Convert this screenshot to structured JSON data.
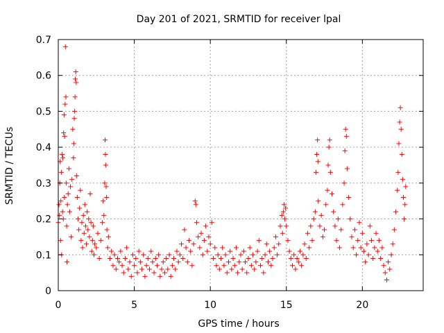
{
  "chart_data": {
    "type": "scatter",
    "title": "Day 201 of 2021, SRMTID for receiver lpal",
    "xlabel": "GPS time / hours",
    "ylabel": "SRMTID / TECUs",
    "xlim": [
      0,
      24
    ],
    "ylim": [
      0,
      0.7
    ],
    "xticks": [
      0,
      5,
      10,
      15,
      20
    ],
    "xtick_labels": [
      "0",
      "5",
      "10",
      "15",
      "20"
    ],
    "yticks": [
      0,
      0.1,
      0.2,
      0.3,
      0.4,
      0.5,
      0.6,
      0.7
    ],
    "ytick_labels": [
      "0",
      "0.1",
      "0.2",
      "0.3",
      "0.4",
      "0.5",
      "0.6",
      "0.7"
    ],
    "grid": true,
    "marker": "+",
    "color": "#ff0000",
    "series": [
      {
        "name": "SRMTID",
        "points": [
          [
            0.0,
            0.19
          ],
          [
            0.05,
            0.24
          ],
          [
            0.08,
            0.21
          ],
          [
            0.1,
            0.3
          ],
          [
            0.12,
            0.36
          ],
          [
            0.15,
            0.14
          ],
          [
            0.17,
            0.25
          ],
          [
            0.2,
            0.33
          ],
          [
            0.22,
            0.1
          ],
          [
            0.25,
            0.38
          ],
          [
            0.28,
            0.22
          ],
          [
            0.3,
            0.37
          ],
          [
            0.33,
            0.2
          ],
          [
            0.35,
            0.44
          ],
          [
            0.38,
            0.49
          ],
          [
            0.4,
            0.26
          ],
          [
            0.42,
            0.43
          ],
          [
            0.45,
            0.52
          ],
          [
            0.47,
            0.68
          ],
          [
            0.5,
            0.54
          ],
          [
            0.52,
            0.3
          ],
          [
            0.55,
            0.18
          ],
          [
            0.57,
            0.08
          ],
          [
            0.6,
            0.24
          ],
          [
            0.65,
            0.27
          ],
          [
            0.7,
            0.34
          ],
          [
            0.75,
            0.22
          ],
          [
            0.8,
            0.29
          ],
          [
            0.85,
            0.15
          ],
          [
            0.9,
            0.31
          ],
          [
            0.95,
            0.45
          ],
          [
            1.0,
            0.37
          ],
          [
            1.02,
            0.41
          ],
          [
            1.05,
            0.48
          ],
          [
            1.08,
            0.5
          ],
          [
            1.1,
            0.54
          ],
          [
            1.12,
            0.59
          ],
          [
            1.15,
            0.61
          ],
          [
            1.18,
            0.58
          ],
          [
            1.2,
            0.32
          ],
          [
            1.25,
            0.26
          ],
          [
            1.3,
            0.2
          ],
          [
            1.35,
            0.17
          ],
          [
            1.4,
            0.23
          ],
          [
            1.45,
            0.28
          ],
          [
            1.5,
            0.14
          ],
          [
            1.55,
            0.19
          ],
          [
            1.6,
            0.12
          ],
          [
            1.65,
            0.21
          ],
          [
            1.7,
            0.16
          ],
          [
            1.75,
            0.24
          ],
          [
            1.8,
            0.18
          ],
          [
            1.85,
            0.13
          ],
          [
            1.9,
            0.22
          ],
          [
            1.95,
            0.17
          ],
          [
            2.0,
            0.2
          ],
          [
            2.05,
            0.15
          ],
          [
            2.1,
            0.27
          ],
          [
            2.15,
            0.19
          ],
          [
            2.2,
            0.11
          ],
          [
            2.25,
            0.14
          ],
          [
            2.3,
            0.18
          ],
          [
            2.35,
            0.1
          ],
          [
            2.4,
            0.13
          ],
          [
            2.5,
            0.12
          ],
          [
            2.6,
            0.16
          ],
          [
            2.7,
            0.09
          ],
          [
            2.8,
            0.14
          ],
          [
            2.9,
            0.19
          ],
          [
            2.95,
            0.25
          ],
          [
            3.0,
            0.21
          ],
          [
            3.05,
            0.3
          ],
          [
            3.08,
            0.42
          ],
          [
            3.1,
            0.38
          ],
          [
            3.12,
            0.35
          ],
          [
            3.15,
            0.29
          ],
          [
            3.18,
            0.26
          ],
          [
            3.2,
            0.17
          ],
          [
            3.25,
            0.12
          ],
          [
            3.3,
            0.15
          ],
          [
            3.4,
            0.09
          ],
          [
            3.5,
            0.11
          ],
          [
            3.6,
            0.07
          ],
          [
            3.7,
            0.1
          ],
          [
            3.8,
            0.06
          ],
          [
            3.9,
            0.09
          ],
          [
            4.0,
            0.08
          ],
          [
            4.1,
            0.11
          ],
          [
            4.2,
            0.07
          ],
          [
            4.3,
            0.05
          ],
          [
            4.4,
            0.09
          ],
          [
            4.5,
            0.12
          ],
          [
            4.6,
            0.06
          ],
          [
            4.7,
            0.08
          ],
          [
            4.8,
            0.04
          ],
          [
            4.9,
            0.1
          ],
          [
            5.0,
            0.07
          ],
          [
            5.1,
            0.09
          ],
          [
            5.2,
            0.05
          ],
          [
            5.3,
            0.11
          ],
          [
            5.4,
            0.08
          ],
          [
            5.5,
            0.06
          ],
          [
            5.6,
            0.1
          ],
          [
            5.7,
            0.04
          ],
          [
            5.8,
            0.07
          ],
          [
            5.9,
            0.09
          ],
          [
            6.0,
            0.06
          ],
          [
            6.1,
            0.11
          ],
          [
            6.2,
            0.08
          ],
          [
            6.3,
            0.05
          ],
          [
            6.4,
            0.09
          ],
          [
            6.5,
            0.07
          ],
          [
            6.6,
            0.1
          ],
          [
            6.7,
            0.04
          ],
          [
            6.8,
            0.06
          ],
          [
            6.9,
            0.08
          ],
          [
            7.0,
            0.05
          ],
          [
            7.1,
            0.09
          ],
          [
            7.2,
            0.06
          ],
          [
            7.3,
            0.1
          ],
          [
            7.4,
            0.04
          ],
          [
            7.5,
            0.07
          ],
          [
            7.6,
            0.09
          ],
          [
            7.7,
            0.06
          ],
          [
            7.8,
            0.11
          ],
          [
            7.9,
            0.08
          ],
          [
            8.0,
            0.1
          ],
          [
            8.1,
            0.13
          ],
          [
            8.2,
            0.09
          ],
          [
            8.3,
            0.17
          ],
          [
            8.4,
            0.12
          ],
          [
            8.5,
            0.08
          ],
          [
            8.6,
            0.14
          ],
          [
            8.7,
            0.11
          ],
          [
            8.8,
            0.07
          ],
          [
            8.9,
            0.13
          ],
          [
            9.0,
            0.25
          ],
          [
            9.05,
            0.24
          ],
          [
            9.1,
            0.19
          ],
          [
            9.2,
            0.15
          ],
          [
            9.3,
            0.12
          ],
          [
            9.4,
            0.16
          ],
          [
            9.5,
            0.1
          ],
          [
            9.6,
            0.14
          ],
          [
            9.7,
            0.18
          ],
          [
            9.8,
            0.11
          ],
          [
            9.9,
            0.15
          ],
          [
            10.0,
            0.13
          ],
          [
            10.1,
            0.19
          ],
          [
            10.2,
            0.09
          ],
          [
            10.3,
            0.12
          ],
          [
            10.4,
            0.07
          ],
          [
            10.5,
            0.1
          ],
          [
            10.6,
            0.06
          ],
          [
            10.7,
            0.09
          ],
          [
            10.8,
            0.12
          ],
          [
            10.9,
            0.07
          ],
          [
            11.0,
            0.1
          ],
          [
            11.1,
            0.05
          ],
          [
            11.2,
            0.08
          ],
          [
            11.3,
            0.11
          ],
          [
            11.4,
            0.06
          ],
          [
            11.5,
            0.09
          ],
          [
            11.6,
            0.07
          ],
          [
            11.7,
            0.12
          ],
          [
            11.8,
            0.05
          ],
          [
            11.9,
            0.08
          ],
          [
            12.0,
            0.1
          ],
          [
            12.1,
            0.06
          ],
          [
            12.2,
            0.11
          ],
          [
            12.3,
            0.08
          ],
          [
            12.4,
            0.05
          ],
          [
            12.5,
            0.09
          ],
          [
            12.6,
            0.12
          ],
          [
            12.7,
            0.07
          ],
          [
            12.8,
            0.1
          ],
          [
            12.9,
            0.06
          ],
          [
            13.0,
            0.08
          ],
          [
            13.1,
            0.11
          ],
          [
            13.2,
            0.14
          ],
          [
            13.3,
            0.07
          ],
          [
            13.4,
            0.09
          ],
          [
            13.5,
            0.05
          ],
          [
            13.6,
            0.1
          ],
          [
            13.7,
            0.13
          ],
          [
            13.8,
            0.08
          ],
          [
            13.9,
            0.11
          ],
          [
            14.0,
            0.07
          ],
          [
            14.1,
            0.09
          ],
          [
            14.2,
            0.12
          ],
          [
            14.3,
            0.15
          ],
          [
            14.4,
            0.1
          ],
          [
            14.5,
            0.13
          ],
          [
            14.6,
            0.18
          ],
          [
            14.7,
            0.21
          ],
          [
            14.75,
            0.16
          ],
          [
            14.8,
            0.22
          ],
          [
            14.85,
            0.24
          ],
          [
            14.9,
            0.2
          ],
          [
            14.95,
            0.23
          ],
          [
            15.0,
            0.18
          ],
          [
            15.1,
            0.14
          ],
          [
            15.2,
            0.11
          ],
          [
            15.3,
            0.09
          ],
          [
            15.4,
            0.07
          ],
          [
            15.5,
            0.1
          ],
          [
            15.6,
            0.06
          ],
          [
            15.7,
            0.09
          ],
          [
            15.8,
            0.08
          ],
          [
            15.9,
            0.11
          ],
          [
            16.0,
            0.07
          ],
          [
            16.1,
            0.1
          ],
          [
            16.2,
            0.13
          ],
          [
            16.3,
            0.09
          ],
          [
            16.4,
            0.16
          ],
          [
            16.5,
            0.12
          ],
          [
            16.6,
            0.18
          ],
          [
            16.7,
            0.14
          ],
          [
            16.8,
            0.2
          ],
          [
            16.9,
            0.22
          ],
          [
            16.95,
            0.33
          ],
          [
            17.0,
            0.38
          ],
          [
            17.05,
            0.42
          ],
          [
            17.08,
            0.36
          ],
          [
            17.1,
            0.25
          ],
          [
            17.2,
            0.18
          ],
          [
            17.3,
            0.21
          ],
          [
            17.4,
            0.15
          ],
          [
            17.5,
            0.17
          ],
          [
            17.6,
            0.24
          ],
          [
            17.7,
            0.28
          ],
          [
            17.75,
            0.35
          ],
          [
            17.8,
            0.4
          ],
          [
            17.85,
            0.42
          ],
          [
            17.9,
            0.33
          ],
          [
            18.0,
            0.27
          ],
          [
            18.1,
            0.22
          ],
          [
            18.2,
            0.18
          ],
          [
            18.3,
            0.14
          ],
          [
            18.4,
            0.2
          ],
          [
            18.5,
            0.12
          ],
          [
            18.6,
            0.17
          ],
          [
            18.7,
            0.24
          ],
          [
            18.8,
            0.3
          ],
          [
            18.85,
            0.39
          ],
          [
            18.9,
            0.45
          ],
          [
            18.95,
            0.43
          ],
          [
            19.0,
            0.34
          ],
          [
            19.1,
            0.26
          ],
          [
            19.2,
            0.2
          ],
          [
            19.3,
            0.15
          ],
          [
            19.4,
            0.12
          ],
          [
            19.5,
            0.17
          ],
          [
            19.6,
            0.1
          ],
          [
            19.7,
            0.14
          ],
          [
            19.8,
            0.19
          ],
          [
            19.9,
            0.12
          ],
          [
            20.0,
            0.16
          ],
          [
            20.1,
            0.11
          ],
          [
            20.2,
            0.08
          ],
          [
            20.3,
            0.13
          ],
          [
            20.4,
            0.1
          ],
          [
            20.5,
            0.18
          ],
          [
            20.6,
            0.14
          ],
          [
            20.7,
            0.09
          ],
          [
            20.8,
            0.12
          ],
          [
            20.9,
            0.16
          ],
          [
            21.0,
            0.11
          ],
          [
            21.1,
            0.14
          ],
          [
            21.2,
            0.09
          ],
          [
            21.3,
            0.12
          ],
          [
            21.4,
            0.07
          ],
          [
            21.5,
            0.05
          ],
          [
            21.6,
            0.03
          ],
          [
            21.7,
            0.08
          ],
          [
            21.8,
            0.06
          ],
          [
            21.9,
            0.1
          ],
          [
            22.0,
            0.13
          ],
          [
            22.1,
            0.17
          ],
          [
            22.2,
            0.22
          ],
          [
            22.3,
            0.28
          ],
          [
            22.35,
            0.33
          ],
          [
            22.4,
            0.41
          ],
          [
            22.45,
            0.47
          ],
          [
            22.5,
            0.51
          ],
          [
            22.55,
            0.45
          ],
          [
            22.6,
            0.38
          ],
          [
            22.65,
            0.31
          ],
          [
            22.7,
            0.26
          ],
          [
            22.75,
            0.2
          ],
          [
            22.8,
            0.24
          ],
          [
            22.85,
            0.29
          ]
        ]
      }
    ]
  }
}
